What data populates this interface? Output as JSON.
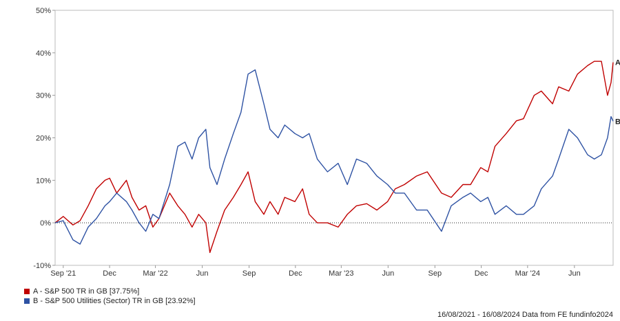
{
  "chart_data": {
    "type": "line",
    "title": "",
    "xlabel": "",
    "ylabel": "",
    "ylim": [
      -10,
      50
    ],
    "y_ticks": [
      -10,
      0,
      10,
      20,
      30,
      40,
      50
    ],
    "y_tick_labels": [
      "-10%",
      "0%",
      "10%",
      "20%",
      "30%",
      "40%",
      "50%"
    ],
    "x_ticks": [
      "Sep '21",
      "Dec",
      "Mar '22",
      "Jun",
      "Sep",
      "Dec",
      "Mar '23",
      "Jun",
      "Sep",
      "Dec",
      "Mar '24",
      "Jun"
    ],
    "x_tick_dates": [
      "2021-09-01",
      "2021-12-01",
      "2022-03-01",
      "2022-06-01",
      "2022-09-01",
      "2022-12-01",
      "2023-03-01",
      "2023-06-01",
      "2023-09-01",
      "2023-12-01",
      "2024-03-01",
      "2024-06-01"
    ],
    "x_range": [
      "2021-08-16",
      "2024-08-16"
    ],
    "grid": false,
    "zero_line": "dotted",
    "series": [
      {
        "name": "A - S&P 500 TR in GB [37.75%]",
        "end_label": "A",
        "color": "#c00000",
        "x": [
          "2021-08-16",
          "2021-09-01",
          "2021-09-20",
          "2021-10-04",
          "2021-10-20",
          "2021-11-05",
          "2021-11-22",
          "2021-12-01",
          "2021-12-15",
          "2022-01-03",
          "2022-01-14",
          "2022-01-28",
          "2022-02-10",
          "2022-02-24",
          "2022-03-08",
          "2022-03-29",
          "2022-04-14",
          "2022-04-28",
          "2022-05-12",
          "2022-05-25",
          "2022-06-08",
          "2022-06-16",
          "2022-06-30",
          "2022-07-15",
          "2022-08-01",
          "2022-08-16",
          "2022-08-30",
          "2022-09-13",
          "2022-09-30",
          "2022-10-12",
          "2022-10-28",
          "2022-11-10",
          "2022-11-30",
          "2022-12-15",
          "2022-12-28",
          "2023-01-13",
          "2023-02-02",
          "2023-02-23",
          "2023-03-13",
          "2023-03-31",
          "2023-04-20",
          "2023-05-10",
          "2023-05-31",
          "2023-06-15",
          "2023-07-03",
          "2023-07-27",
          "2023-08-17",
          "2023-09-14",
          "2023-10-03",
          "2023-10-26",
          "2023-11-10",
          "2023-11-30",
          "2023-12-14",
          "2023-12-28",
          "2024-01-19",
          "2024-02-08",
          "2024-02-22",
          "2024-03-14",
          "2024-03-28",
          "2024-04-19",
          "2024-05-01",
          "2024-05-21",
          "2024-06-07",
          "2024-06-27",
          "2024-07-10",
          "2024-07-24",
          "2024-08-05",
          "2024-08-12",
          "2024-08-16"
        ],
        "y": [
          0,
          1.5,
          -0.5,
          0.5,
          4,
          8,
          10,
          10.5,
          7,
          10,
          6,
          3,
          4,
          -1,
          1,
          7,
          4,
          2,
          -1,
          2,
          0,
          -7,
          -2,
          3,
          6,
          9,
          12,
          5,
          2,
          5,
          2,
          6,
          5,
          8,
          2,
          0,
          0,
          -1,
          2,
          4,
          4.5,
          3,
          5,
          8,
          9,
          11,
          12,
          7,
          6,
          9,
          9,
          13,
          12,
          18,
          21,
          24,
          24.5,
          30,
          31,
          28,
          32,
          31,
          35,
          37,
          38,
          38,
          30,
          33,
          37.75
        ]
      },
      {
        "name": "B - S&P 500 Utilities (Sector) TR in GB [23.92%]",
        "end_label": "B",
        "color": "#2e52a3",
        "x": [
          "2021-08-16",
          "2021-09-01",
          "2021-09-20",
          "2021-10-04",
          "2021-10-20",
          "2021-11-05",
          "2021-11-22",
          "2021-12-01",
          "2021-12-15",
          "2022-01-03",
          "2022-01-14",
          "2022-01-28",
          "2022-02-10",
          "2022-02-24",
          "2022-03-08",
          "2022-03-29",
          "2022-04-14",
          "2022-04-28",
          "2022-05-12",
          "2022-05-25",
          "2022-06-08",
          "2022-06-16",
          "2022-06-30",
          "2022-07-15",
          "2022-08-01",
          "2022-08-16",
          "2022-08-30",
          "2022-09-13",
          "2022-09-30",
          "2022-10-12",
          "2022-10-28",
          "2022-11-10",
          "2022-11-30",
          "2022-12-15",
          "2022-12-28",
          "2023-01-13",
          "2023-02-02",
          "2023-02-23",
          "2023-03-13",
          "2023-03-31",
          "2023-04-20",
          "2023-05-10",
          "2023-05-31",
          "2023-06-15",
          "2023-07-03",
          "2023-07-27",
          "2023-08-17",
          "2023-09-14",
          "2023-10-03",
          "2023-10-26",
          "2023-11-10",
          "2023-11-30",
          "2023-12-14",
          "2023-12-28",
          "2024-01-19",
          "2024-02-08",
          "2024-02-22",
          "2024-03-14",
          "2024-03-28",
          "2024-04-19",
          "2024-05-01",
          "2024-05-21",
          "2024-06-07",
          "2024-06-27",
          "2024-07-10",
          "2024-07-24",
          "2024-08-05",
          "2024-08-12",
          "2024-08-16"
        ],
        "y": [
          0,
          0.5,
          -4,
          -5,
          -1,
          1,
          4,
          5,
          7,
          5,
          3,
          0,
          -2,
          2,
          1,
          9,
          18,
          19,
          15,
          20,
          22,
          13,
          9,
          15,
          21,
          26,
          35,
          36,
          28,
          22,
          20,
          23,
          21,
          20,
          21,
          15,
          12,
          14,
          9,
          15,
          14,
          11,
          9,
          7,
          7,
          3,
          3,
          -2,
          4,
          6,
          7,
          5,
          6,
          2,
          4,
          2,
          2,
          4,
          8,
          11,
          15,
          22,
          20,
          16,
          15,
          16,
          20,
          25,
          23.92
        ]
      }
    ]
  },
  "legend": {
    "a_label": "A - S&P 500 TR in GB [37.75%]",
    "b_label": "B - S&P 500 Utilities (Sector) TR in GB [23.92%]"
  },
  "footer": {
    "text": "16/08/2021 - 16/08/2024 Data from FE fundinfo2024"
  }
}
